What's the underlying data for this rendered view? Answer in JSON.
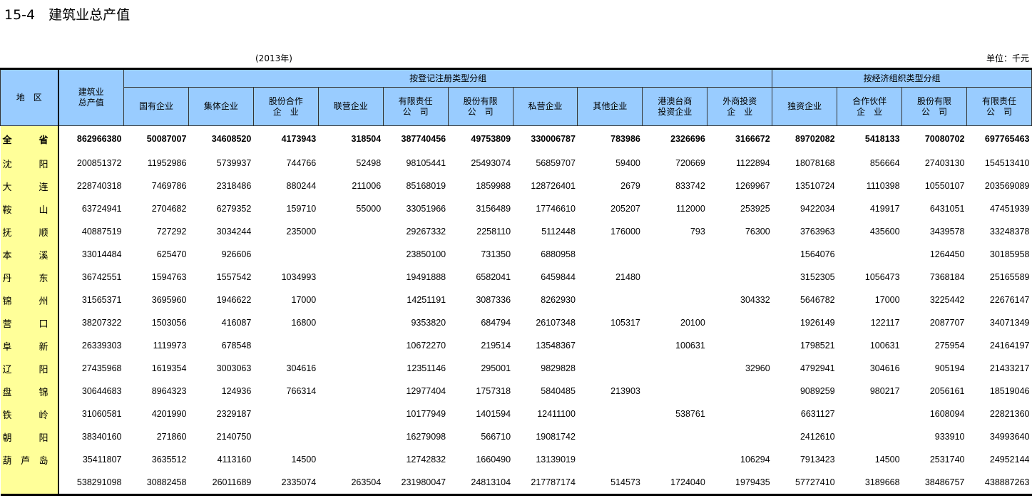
{
  "title": "15-4　建筑业总产值",
  "year": "(2013年)",
  "unit": "单位：千元",
  "header": {
    "region": "地　区",
    "total": "建筑业\n总产值",
    "group_registration": "按登记注册类型分组",
    "group_economic": "按经济组织类型分组",
    "columns": [
      "国有企业",
      "集体企业",
      "股份合作\n企　业",
      "联营企业",
      "有限责任\n公　司",
      "股份有限\n公　司",
      "私营企业",
      "其他企业",
      "港澳台商\n投资企业",
      "外商投资\n企　业",
      "独资企业",
      "合作伙伴\n企　业",
      "股份有限\n公　司",
      "有限责任\n公　司"
    ]
  },
  "rows": [
    {
      "region": "全　省",
      "values": [
        "862966380",
        "50087007",
        "34608520",
        "4173943",
        "318504",
        "387740456",
        "49753809",
        "330006787",
        "783986",
        "2326696",
        "3166672",
        "89702082",
        "5418133",
        "70080702",
        "697765463"
      ]
    },
    {
      "region": "沈　阳",
      "values": [
        "200851372",
        "11952986",
        "5739937",
        "744766",
        "52498",
        "98105441",
        "25493074",
        "56859707",
        "59400",
        "720669",
        "1122894",
        "18078168",
        "856664",
        "27403130",
        "154513410"
      ]
    },
    {
      "region": "大　连",
      "values": [
        "228740318",
        "7469786",
        "2318486",
        "880244",
        "211006",
        "85168019",
        "1859988",
        "128726401",
        "2679",
        "833742",
        "1269967",
        "13510724",
        "1110398",
        "10550107",
        "203569089"
      ]
    },
    {
      "region": "鞍　山",
      "values": [
        "63724941",
        "2704682",
        "6279352",
        "159710",
        "55000",
        "33051966",
        "3156489",
        "17746610",
        "205207",
        "112000",
        "253925",
        "9422034",
        "419917",
        "6431051",
        "47451939"
      ]
    },
    {
      "region": "抚　顺",
      "values": [
        "40887519",
        "727292",
        "3034244",
        "235000",
        "",
        "29267332",
        "2258110",
        "5112448",
        "176000",
        "793",
        "76300",
        "3763963",
        "435600",
        "3439578",
        "33248378"
      ]
    },
    {
      "region": "本　溪",
      "values": [
        "33014484",
        "625470",
        "926606",
        "",
        "",
        "23850100",
        "731350",
        "6880958",
        "",
        "",
        "",
        "1564076",
        "",
        "1264450",
        "30185958"
      ]
    },
    {
      "region": "丹　东",
      "values": [
        "36742551",
        "1594763",
        "1557542",
        "1034993",
        "",
        "19491888",
        "6582041",
        "6459844",
        "21480",
        "",
        "",
        "3152305",
        "1056473",
        "7368184",
        "25165589"
      ]
    },
    {
      "region": "锦　州",
      "values": [
        "31565371",
        "3695960",
        "1946622",
        "17000",
        "",
        "14251191",
        "3087336",
        "8262930",
        "",
        "",
        "304332",
        "5646782",
        "17000",
        "3225442",
        "22676147"
      ]
    },
    {
      "region": "营　口",
      "values": [
        "38207322",
        "1503056",
        "416087",
        "16800",
        "",
        "9353820",
        "684794",
        "26107348",
        "105317",
        "20100",
        "",
        "1926149",
        "122117",
        "2087707",
        "34071349"
      ]
    },
    {
      "region": "阜　新",
      "values": [
        "26339303",
        "1119973",
        "678548",
        "",
        "",
        "10672270",
        "219514",
        "13548367",
        "",
        "100631",
        "",
        "1798521",
        "100631",
        "275954",
        "24164197"
      ]
    },
    {
      "region": "辽　阳",
      "values": [
        "27435968",
        "1619354",
        "3003063",
        "304616",
        "",
        "12351146",
        "295001",
        "9829828",
        "",
        "",
        "32960",
        "4792941",
        "304616",
        "905194",
        "21433217"
      ]
    },
    {
      "region": "盘　锦",
      "values": [
        "30644683",
        "8964323",
        "124936",
        "766314",
        "",
        "12977404",
        "1757318",
        "5840485",
        "213903",
        "",
        "",
        "9089259",
        "980217",
        "2056161",
        "18519046"
      ]
    },
    {
      "region": "铁　岭",
      "values": [
        "31060581",
        "4201990",
        "2329187",
        "",
        "",
        "10177949",
        "1401594",
        "12411100",
        "",
        "538761",
        "",
        "6631127",
        "",
        "1608094",
        "22821360"
      ]
    },
    {
      "region": "朝　阳",
      "values": [
        "38340160",
        "271860",
        "2140750",
        "",
        "",
        "16279098",
        "566710",
        "19081742",
        "",
        "",
        "",
        "2412610",
        "",
        "933910",
        "34993640"
      ]
    },
    {
      "region": "葫芦岛",
      "values": [
        "35411807",
        "3635512",
        "4113160",
        "14500",
        "",
        "12742832",
        "1660490",
        "13139019",
        "",
        "",
        "106294",
        "7913423",
        "14500",
        "2531740",
        "24952144"
      ]
    },
    {
      "region": "",
      "values": [
        "538291098",
        "30882458",
        "26011689",
        "2335074",
        "263504",
        "231980047",
        "24813104",
        "217787174",
        "514573",
        "1724040",
        "1979435",
        "57727410",
        "3189668",
        "38486757",
        "438887263"
      ]
    }
  ],
  "colors": {
    "header_bg": "#99ccff",
    "region_bg": "#ffff99"
  }
}
